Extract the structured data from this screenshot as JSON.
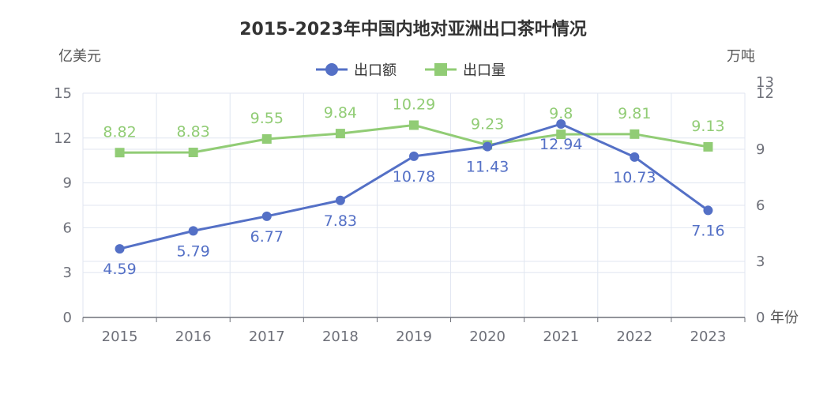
{
  "chart_data": {
    "type": "line",
    "title": "2015-2023年中国内地对亚洲出口茶叶情况",
    "xlabel": "年份",
    "categories": [
      "2015",
      "2016",
      "2017",
      "2018",
      "2019",
      "2020",
      "2021",
      "2022",
      "2023"
    ],
    "y_left": {
      "label": "亿美元",
      "ylim": [
        0,
        15
      ],
      "ticks": [
        "0",
        "3",
        "6",
        "9",
        "12",
        "15"
      ]
    },
    "y_right": {
      "label": "万吨",
      "ylim": [
        0,
        12
      ],
      "ticks": [
        "0",
        "3",
        "6",
        "9",
        "12"
      ],
      "extra_tick": "13"
    },
    "legend_position": "top-center",
    "grid": true,
    "series": [
      {
        "name": "出口额",
        "axis": "left",
        "color": "#5470c6",
        "marker": "circle",
        "values": [
          4.59,
          5.79,
          6.77,
          7.83,
          10.78,
          11.43,
          12.94,
          10.73,
          7.16
        ],
        "labels": [
          "4.59",
          "5.79",
          "6.77",
          "7.83",
          "10.78",
          "11.43",
          "12.94",
          "10.73",
          "7.16"
        ]
      },
      {
        "name": "出口量",
        "axis": "right",
        "color": "#91cc75",
        "marker": "square",
        "values": [
          8.82,
          8.83,
          9.55,
          9.84,
          10.29,
          9.23,
          9.8,
          9.81,
          9.13
        ],
        "labels": [
          "8.82",
          "8.83",
          "9.55",
          "9.84",
          "10.29",
          "9.23",
          "9.8",
          "9.81",
          "9.13"
        ]
      }
    ]
  }
}
